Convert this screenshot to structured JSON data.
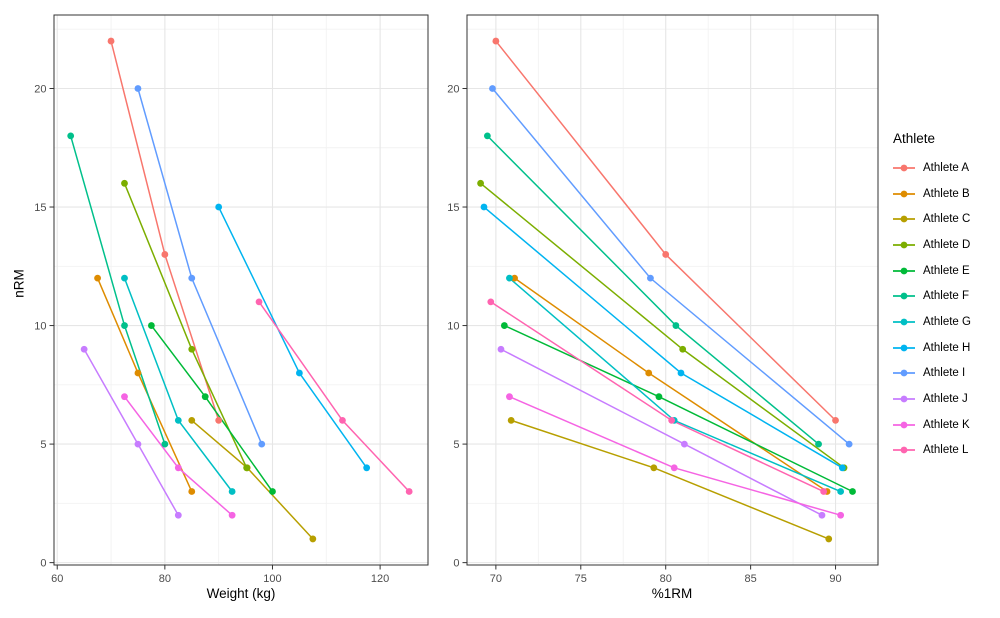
{
  "chart_data": {
    "type": "line",
    "title": "",
    "ylabel": "nRM",
    "ylim": [
      -0.1,
      23.1
    ],
    "yticks": [
      0,
      5,
      10,
      15,
      20
    ],
    "yminor": [
      2.5,
      7.5,
      12.5,
      17.5,
      22.5
    ],
    "legend": {
      "title": "Athlete"
    },
    "facets": [
      {
        "xlabel": "Weight (kg)",
        "x_key": "weight",
        "xlim": [
          59.4,
          128.9
        ],
        "xticks": [
          60,
          80,
          100,
          120
        ],
        "xminor": [
          70,
          90,
          110
        ]
      },
      {
        "xlabel": "%1RM",
        "x_key": "pct",
        "xlim": [
          68.3,
          92.5
        ],
        "xticks": [
          70,
          75,
          80,
          85,
          90
        ],
        "xminor": [
          72.5,
          77.5,
          82.5,
          87.5
        ]
      }
    ],
    "series": [
      {
        "name": "Athlete A",
        "color": "#F8766D",
        "weight": [
          70,
          80,
          90
        ],
        "pct": [
          70,
          80,
          90
        ],
        "nrm": [
          22,
          13,
          6
        ]
      },
      {
        "name": "Athlete B",
        "color": "#DE8C00",
        "weight": [
          67.5,
          75,
          85
        ],
        "pct": [
          71.1,
          79,
          89.5
        ],
        "nrm": [
          12,
          8,
          3
        ]
      },
      {
        "name": "Athlete C",
        "color": "#B79F00",
        "weight": [
          85,
          95.3,
          107.5
        ],
        "pct": [
          70.9,
          79.3,
          89.6
        ],
        "nrm": [
          6,
          4,
          1
        ]
      },
      {
        "name": "Athlete D",
        "color": "#7CAE00",
        "weight": [
          72.5,
          85,
          95.2
        ],
        "pct": [
          69.1,
          81,
          90.5
        ],
        "nrm": [
          16,
          9,
          4
        ]
      },
      {
        "name": "Athlete E",
        "color": "#00BA38",
        "weight": [
          77.5,
          87.5,
          100
        ],
        "pct": [
          70.5,
          79.6,
          91
        ],
        "nrm": [
          10,
          7,
          3
        ]
      },
      {
        "name": "Athlete F",
        "color": "#00C08B",
        "weight": [
          62.5,
          72.5,
          80
        ],
        "pct": [
          69.5,
          80.6,
          89
        ],
        "nrm": [
          18,
          10,
          5
        ]
      },
      {
        "name": "Athlete G",
        "color": "#00BFC4",
        "weight": [
          72.5,
          82.5,
          92.5
        ],
        "pct": [
          70.8,
          80.5,
          90.3
        ],
        "nrm": [
          12,
          6,
          3
        ]
      },
      {
        "name": "Athlete H",
        "color": "#00B4F0",
        "weight": [
          90,
          105,
          117.5
        ],
        "pct": [
          69.3,
          80.9,
          90.4
        ],
        "nrm": [
          15,
          8,
          4
        ]
      },
      {
        "name": "Athlete I",
        "color": "#619CFF",
        "weight": [
          75,
          85,
          98
        ],
        "pct": [
          69.8,
          79.1,
          90.8
        ],
        "nrm": [
          20,
          12,
          5
        ]
      },
      {
        "name": "Athlete J",
        "color": "#C77CFF",
        "weight": [
          65,
          75,
          82.5
        ],
        "pct": [
          70.3,
          81.1,
          89.2
        ],
        "nrm": [
          9,
          5,
          2
        ]
      },
      {
        "name": "Athlete K",
        "color": "#F564E3",
        "weight": [
          72.5,
          82.5,
          92.5
        ],
        "pct": [
          70.8,
          80.5,
          90.3
        ],
        "nrm": [
          7,
          4,
          2
        ]
      },
      {
        "name": "Athlete L",
        "color": "#FF64B0",
        "weight": [
          97.5,
          113,
          125.4
        ],
        "pct": [
          69.7,
          80.35,
          89.3
        ],
        "nrm": [
          11,
          6,
          3
        ]
      }
    ]
  }
}
